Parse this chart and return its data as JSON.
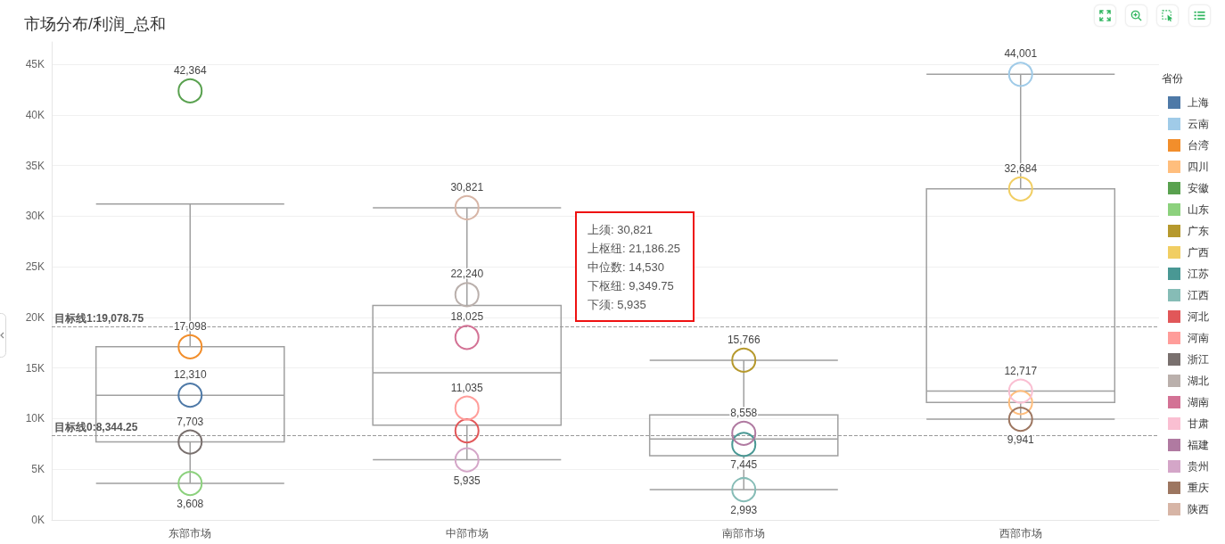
{
  "chart_data": {
    "type": "box",
    "title": "市场分布/利润_总和",
    "categories": [
      "东部市场",
      "中部市场",
      "南部市场",
      "西部市场"
    ],
    "ylim": [
      0,
      47200
    ],
    "yticks": [
      {
        "value": 0,
        "label": "0K"
      },
      {
        "value": 5000,
        "label": "5K"
      },
      {
        "value": 10000,
        "label": "10K"
      },
      {
        "value": 15000,
        "label": "15K"
      },
      {
        "value": 20000,
        "label": "20K"
      },
      {
        "value": 25000,
        "label": "25K"
      },
      {
        "value": 30000,
        "label": "30K"
      },
      {
        "value": 35000,
        "label": "35K"
      },
      {
        "value": 40000,
        "label": "40K"
      },
      {
        "value": 45000,
        "label": "45K"
      }
    ],
    "grid": "y",
    "legend": "right",
    "legend_title": "省份",
    "marker": "circle",
    "series": [
      {
        "type": "box",
        "color": "#a0a0a0",
        "boxes": [
          {
            "low": 3608,
            "q1": 7703,
            "median": 12310,
            "q3": 17098,
            "high": 31200
          },
          {
            "low": 5935,
            "q1": 9349.75,
            "median": 14530,
            "q3": 21186.25,
            "high": 30821
          },
          {
            "low": 2993,
            "q1": 6330,
            "median": 8000,
            "q3": 10360,
            "high": 15766
          },
          {
            "low": 9941,
            "q1": 11600,
            "median": 12717,
            "q3": 32684,
            "high": 44001
          }
        ]
      },
      {
        "name": "上海",
        "type": "scatter",
        "color": "#4e79a7",
        "x": [
          "东部市场"
        ],
        "values": [
          12310
        ],
        "value_labels": [
          "12,310"
        ]
      },
      {
        "name": "云南",
        "type": "scatter",
        "color": "#a0cbe8",
        "x": [
          "西部市场"
        ],
        "values": [
          44001
        ],
        "value_labels": [
          "44,001"
        ]
      },
      {
        "name": "台湾",
        "type": "scatter",
        "color": "#f28e2b",
        "x": [
          "东部市场"
        ],
        "values": [
          17098
        ],
        "value_labels": [
          "17,098"
        ]
      },
      {
        "name": "四川",
        "type": "scatter",
        "color": "#ffbe7d",
        "x": [
          "西部市场"
        ],
        "values": [
          11600
        ],
        "value_labels": [
          null
        ]
      },
      {
        "name": "安徽",
        "type": "scatter",
        "color": "#59a14f",
        "x": [
          "东部市场"
        ],
        "values": [
          42364
        ],
        "value_labels": [
          "42,364"
        ]
      },
      {
        "name": "山东",
        "type": "scatter",
        "color": "#8cd17d",
        "x": [
          "东部市场"
        ],
        "values": [
          3608
        ],
        "value_labels": [
          "3,608"
        ]
      },
      {
        "name": "广东",
        "type": "scatter",
        "color": "#b6992d",
        "x": [
          "南部市场"
        ],
        "values": [
          15766
        ],
        "value_labels": [
          "15,766"
        ]
      },
      {
        "name": "广西",
        "type": "scatter",
        "color": "#f1ce63",
        "x": [
          "西部市场"
        ],
        "values": [
          32684
        ],
        "value_labels": [
          "32,684"
        ]
      },
      {
        "name": "江苏",
        "type": "scatter",
        "color": "#499894",
        "x": [
          "南部市场"
        ],
        "values": [
          7445
        ],
        "value_labels": [
          "7,445"
        ]
      },
      {
        "name": "江西",
        "type": "scatter",
        "color": "#86bcb6",
        "x": [
          "南部市场"
        ],
        "values": [
          2993
        ],
        "value_labels": [
          "2,993"
        ]
      },
      {
        "name": "河北",
        "type": "scatter",
        "color": "#e15759",
        "x": [
          "中部市场"
        ],
        "values": [
          8800
        ],
        "value_labels": [
          null
        ]
      },
      {
        "name": "河南",
        "type": "scatter",
        "color": "#ff9d9a",
        "x": [
          "中部市场"
        ],
        "values": [
          11035
        ],
        "value_labels": [
          "11,035"
        ]
      },
      {
        "name": "浙江",
        "type": "scatter",
        "color": "#79706e",
        "x": [
          "东部市场"
        ],
        "values": [
          7703
        ],
        "value_labels": [
          "7,703"
        ]
      },
      {
        "name": "湖北",
        "type": "scatter",
        "color": "#bab0ac",
        "x": [
          "中部市场"
        ],
        "values": [
          22240
        ],
        "value_labels": [
          "22,240"
        ]
      },
      {
        "name": "湖南",
        "type": "scatter",
        "color": "#d37295",
        "x": [
          "中部市场"
        ],
        "values": [
          18025
        ],
        "value_labels": [
          "18,025"
        ]
      },
      {
        "name": "甘肃",
        "type": "scatter",
        "color": "#fabfd2",
        "x": [
          "西部市场"
        ],
        "values": [
          12717
        ],
        "value_labels": [
          "12,717"
        ]
      },
      {
        "name": "福建",
        "type": "scatter",
        "color": "#b07aa1",
        "x": [
          "南部市场"
        ],
        "values": [
          8558
        ],
        "value_labels": [
          "8,558"
        ]
      },
      {
        "name": "贵州",
        "type": "scatter",
        "color": "#d4a6c8",
        "x": [
          "中部市场"
        ],
        "values": [
          5935
        ],
        "value_labels": [
          "5,935"
        ]
      },
      {
        "name": "重庆",
        "type": "scatter",
        "color": "#9d7660",
        "x": [
          "西部市场"
        ],
        "values": [
          9941
        ],
        "value_labels": [
          "9,941"
        ]
      },
      {
        "name": "陕西",
        "type": "scatter",
        "color": "#d7b5a6",
        "x": [
          "中部市场"
        ],
        "values": [
          30821
        ],
        "value_labels": [
          "30,821"
        ]
      }
    ],
    "ref_lines": [
      {
        "axis": "y",
        "value": 19078.75,
        "label": "目标线1:19,078.75",
        "color": "#999999",
        "line_style": "dashed"
      },
      {
        "axis": "y",
        "value": 8344.25,
        "label": "目标线0:8,344.25",
        "color": "#999999",
        "line_style": "dashed"
      }
    ],
    "annotations": [
      "上须: 30,821",
      "上枢纽: 21,186.25",
      "中位数: 14,530",
      "下枢纽: 9,349.75",
      "下须: 5,935"
    ]
  }
}
